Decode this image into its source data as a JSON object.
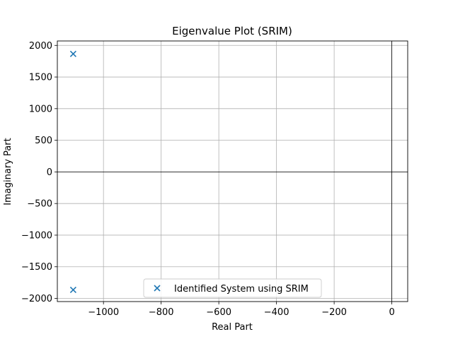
{
  "chart_data": {
    "type": "scatter",
    "title": "Eigenvalue Plot (SRIM)",
    "xlabel": "Real Part",
    "ylabel": "Imaginary Part",
    "xlim": [
      -1160,
      55
    ],
    "ylim": [
      -2050,
      2070
    ],
    "xticks": [
      -1000,
      -800,
      -600,
      -400,
      -200,
      0
    ],
    "xtick_labels": [
      "−1000",
      "−800",
      "−600",
      "−400",
      "−200",
      "0"
    ],
    "yticks": [
      -2000,
      -1500,
      -1000,
      -500,
      0,
      500,
      1000,
      1500,
      2000
    ],
    "ytick_labels": [
      "−2000",
      "−1500",
      "−1000",
      "−500",
      "0",
      "500",
      "1000",
      "1500",
      "2000"
    ],
    "grid": true,
    "zero_lines": true,
    "legend_position": "lower-center",
    "series": [
      {
        "name": "Identified System using SRIM",
        "marker": "x",
        "color": "#1f77b4",
        "points": [
          {
            "x": -1105,
            "y": 1865
          },
          {
            "x": -1105,
            "y": -1865
          }
        ]
      }
    ]
  }
}
